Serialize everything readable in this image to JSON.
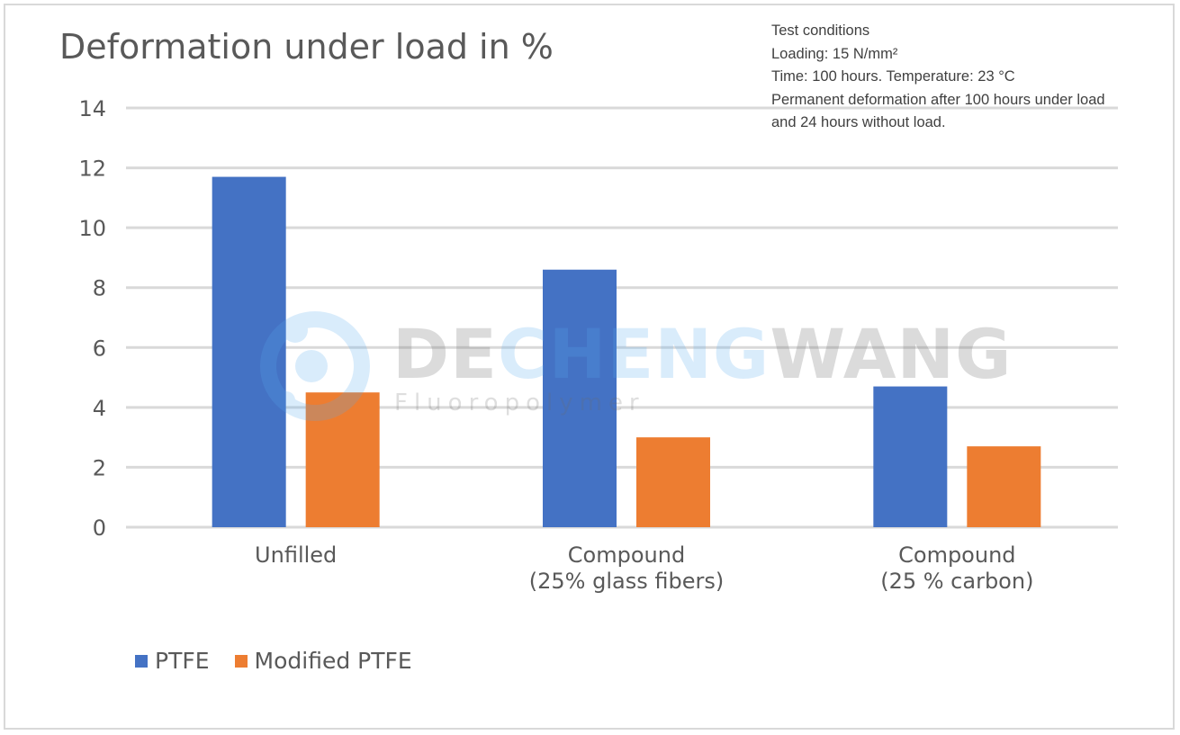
{
  "chart_data": {
    "type": "bar",
    "title": "Deformation under load in %",
    "categories": [
      [
        "Unfilled"
      ],
      [
        "Compound",
        "(25% glass fibers)"
      ],
      [
        "Compound",
        "(25 % carbon)"
      ]
    ],
    "series": [
      {
        "name": "PTFE",
        "color": "#4472c4",
        "values": [
          11.7,
          8.6,
          4.7
        ]
      },
      {
        "name": "Modified PTFE",
        "color": "#ed7d31",
        "values": [
          4.5,
          3.0,
          2.7
        ]
      }
    ],
    "ylim": [
      0,
      14
    ],
    "yticks": [
      "0",
      "2",
      "4",
      "6",
      "8",
      "10",
      "12",
      "14"
    ],
    "grid": true,
    "legend_position": "bottom-left",
    "notes": [
      "Test conditions",
      "Loading: 15 N/mm²",
      "Time: 100 hours. Temperature: 23 °C",
      "Permanent deformation after 100 hours under load",
      "and 24 hours without load."
    ]
  },
  "watermark": {
    "brand_parts": [
      "DE",
      "CHENG",
      "WANG"
    ],
    "brand_colors": [
      "#606060",
      "#56aaf0",
      "#606060"
    ],
    "subtitle": "Fluoropolymer"
  }
}
